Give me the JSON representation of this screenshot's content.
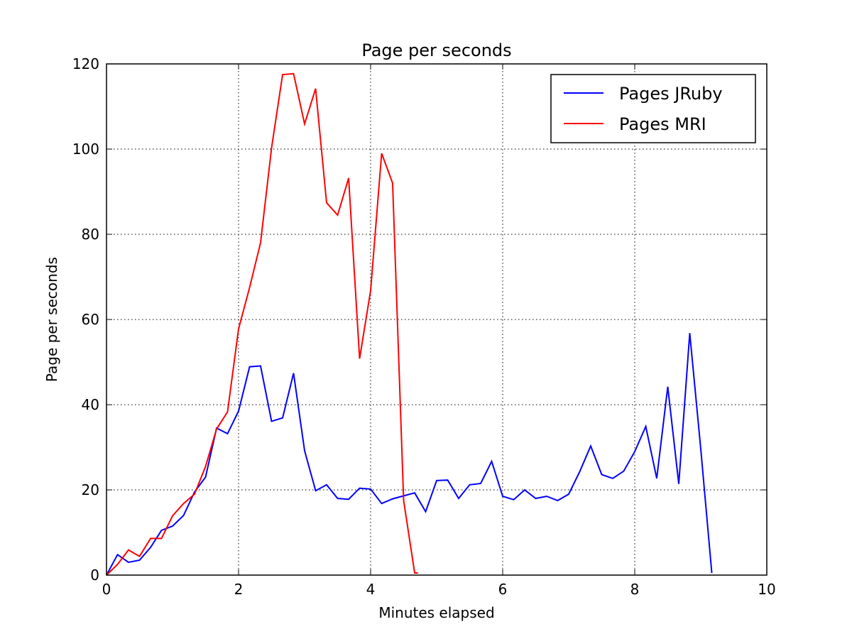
{
  "chart_data": {
    "type": "line",
    "title": "Page per seconds",
    "xlabel": "Minutes elapsed",
    "ylabel": "Page per seconds",
    "xlim": [
      0,
      10
    ],
    "ylim": [
      0,
      120
    ],
    "xticks": [
      0,
      2,
      4,
      6,
      8,
      10
    ],
    "yticks": [
      0,
      20,
      40,
      60,
      80,
      100,
      120
    ],
    "xtick_labels": [
      "0",
      "2",
      "4",
      "6",
      "8",
      "10"
    ],
    "ytick_labels": [
      "0",
      "20",
      "40",
      "60",
      "80",
      "100",
      "120"
    ],
    "grid": true,
    "legend_position": "top-right",
    "series": [
      {
        "name": "Pages JRuby",
        "color": "#0000ff",
        "x": [
          0,
          0.167,
          0.333,
          0.5,
          0.667,
          0.833,
          1.0,
          1.167,
          1.333,
          1.5,
          1.667,
          1.833,
          2.0,
          2.167,
          2.333,
          2.5,
          2.667,
          2.833,
          3.0,
          3.167,
          3.333,
          3.5,
          3.667,
          3.833,
          4.0,
          4.167,
          4.333,
          4.5,
          4.667,
          4.833,
          5.0,
          5.167,
          5.333,
          5.5,
          5.667,
          5.833,
          6.0,
          6.167,
          6.333,
          6.5,
          6.667,
          6.833,
          7.0,
          7.167,
          7.333,
          7.5,
          7.667,
          7.833,
          8.0,
          8.167,
          8.333,
          8.5,
          8.667,
          8.833,
          9.0,
          9.167
        ],
        "y": [
          0,
          4.8,
          3.0,
          3.5,
          6.5,
          10.5,
          11.5,
          14.0,
          19.5,
          23.0,
          34.5,
          33.2,
          38.5,
          48.9,
          49.1,
          36.1,
          36.9,
          47.4,
          29.2,
          19.8,
          21.2,
          18.0,
          17.8,
          20.4,
          20.2,
          16.8,
          17.9,
          18.6,
          19.3,
          14.9,
          22.2,
          22.3,
          18.0,
          21.2,
          21.5,
          26.7,
          18.5,
          17.7,
          20.0,
          18.0,
          18.5,
          17.5,
          19.0,
          24.3,
          30.3,
          23.6,
          22.7,
          24.4,
          29.0,
          34.9,
          22.7,
          44.2,
          21.4,
          56.8,
          29.6,
          0.5
        ]
      },
      {
        "name": "Pages MRI",
        "color": "#ff0000",
        "x": [
          0,
          0.167,
          0.333,
          0.5,
          0.667,
          0.833,
          1.0,
          1.167,
          1.333,
          1.5,
          1.667,
          1.833,
          2.0,
          2.167,
          2.333,
          2.5,
          2.667,
          2.833,
          3.0,
          3.167,
          3.333,
          3.5,
          3.667,
          3.833,
          4.0,
          4.167,
          4.333,
          4.5,
          4.667,
          4.717
        ],
        "y": [
          0,
          2.5,
          5.9,
          4.4,
          8.6,
          8.6,
          13.9,
          16.8,
          19.0,
          25.5,
          34.3,
          38.3,
          57.8,
          67.5,
          78.0,
          100.3,
          117.5,
          117.7,
          105.9,
          114.2,
          87.4,
          84.5,
          93.2,
          50.8,
          66.8,
          99.0,
          92.0,
          17.5,
          0.5,
          0.5
        ]
      }
    ]
  }
}
